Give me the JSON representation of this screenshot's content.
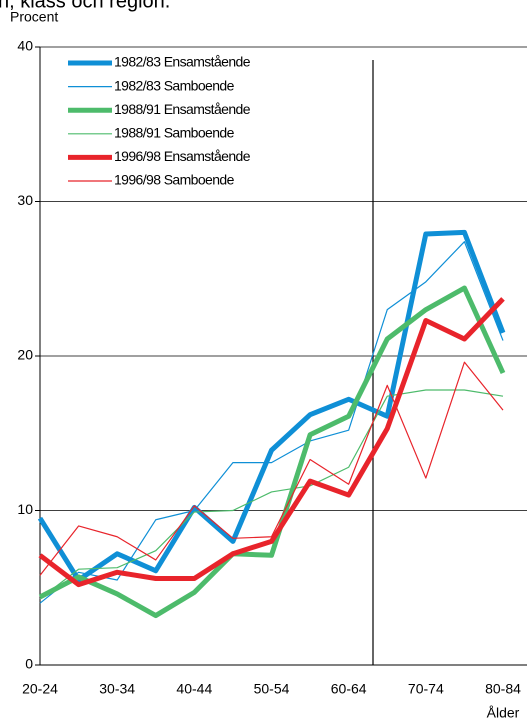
{
  "chart_data": {
    "type": "line",
    "title": "n, klass och region.",
    "ylabel": "Procent",
    "xlabel": "Ålder",
    "categories": [
      "20-24",
      null,
      "30-34",
      null,
      "40-44",
      null,
      "50-54",
      null,
      "60-64",
      null,
      "70-74",
      null,
      "80-84"
    ],
    "ylim": [
      0,
      40
    ],
    "yticks": [
      0,
      10,
      20,
      30,
      40
    ],
    "grid": true,
    "legend": "upper left",
    "series": [
      {
        "name": "1982/83 Ensamstående",
        "color": "#0f8fd6",
        "linewidth": 5,
        "values": [
          9.5,
          5.5,
          7.2,
          6.1,
          10.2,
          8.0,
          13.9,
          16.2,
          17.2,
          16.1,
          27.9,
          28.0,
          21.5
        ]
      },
      {
        "name": "1982/83 Samboende",
        "color": "#0f8fd6",
        "linewidth": 1.2,
        "values": [
          4.0,
          6.0,
          5.5,
          9.4,
          10.0,
          13.1,
          13.1,
          14.5,
          15.2,
          23.0,
          24.8,
          27.4,
          21.0
        ]
      },
      {
        "name": "1988/91 Ensamstående",
        "color": "#4dbb6b",
        "linewidth": 5,
        "values": [
          4.4,
          5.7,
          4.6,
          3.2,
          4.7,
          7.2,
          7.1,
          14.9,
          16.1,
          21.1,
          23.0,
          24.4,
          18.9
        ]
      },
      {
        "name": "1988/91 Samboende",
        "color": "#4dbb6b",
        "linewidth": 1.2,
        "values": [
          4.3,
          6.2,
          6.3,
          7.4,
          9.9,
          10.0,
          11.2,
          11.6,
          12.8,
          17.4,
          17.8,
          17.8,
          17.4
        ]
      },
      {
        "name": "1996/98 Ensamstående",
        "color": "#e8242b",
        "linewidth": 5,
        "values": [
          7.1,
          5.2,
          6.0,
          5.6,
          5.6,
          7.2,
          8.0,
          11.9,
          11.0,
          15.3,
          22.3,
          21.1,
          23.7
        ]
      },
      {
        "name": "1996/98 Samboende",
        "color": "#e8242b",
        "linewidth": 1.2,
        "values": [
          5.8,
          9.0,
          8.3,
          6.8,
          10.3,
          8.2,
          8.3,
          13.3,
          11.7,
          18.1,
          12.1,
          19.6,
          16.5
        ]
      }
    ]
  }
}
